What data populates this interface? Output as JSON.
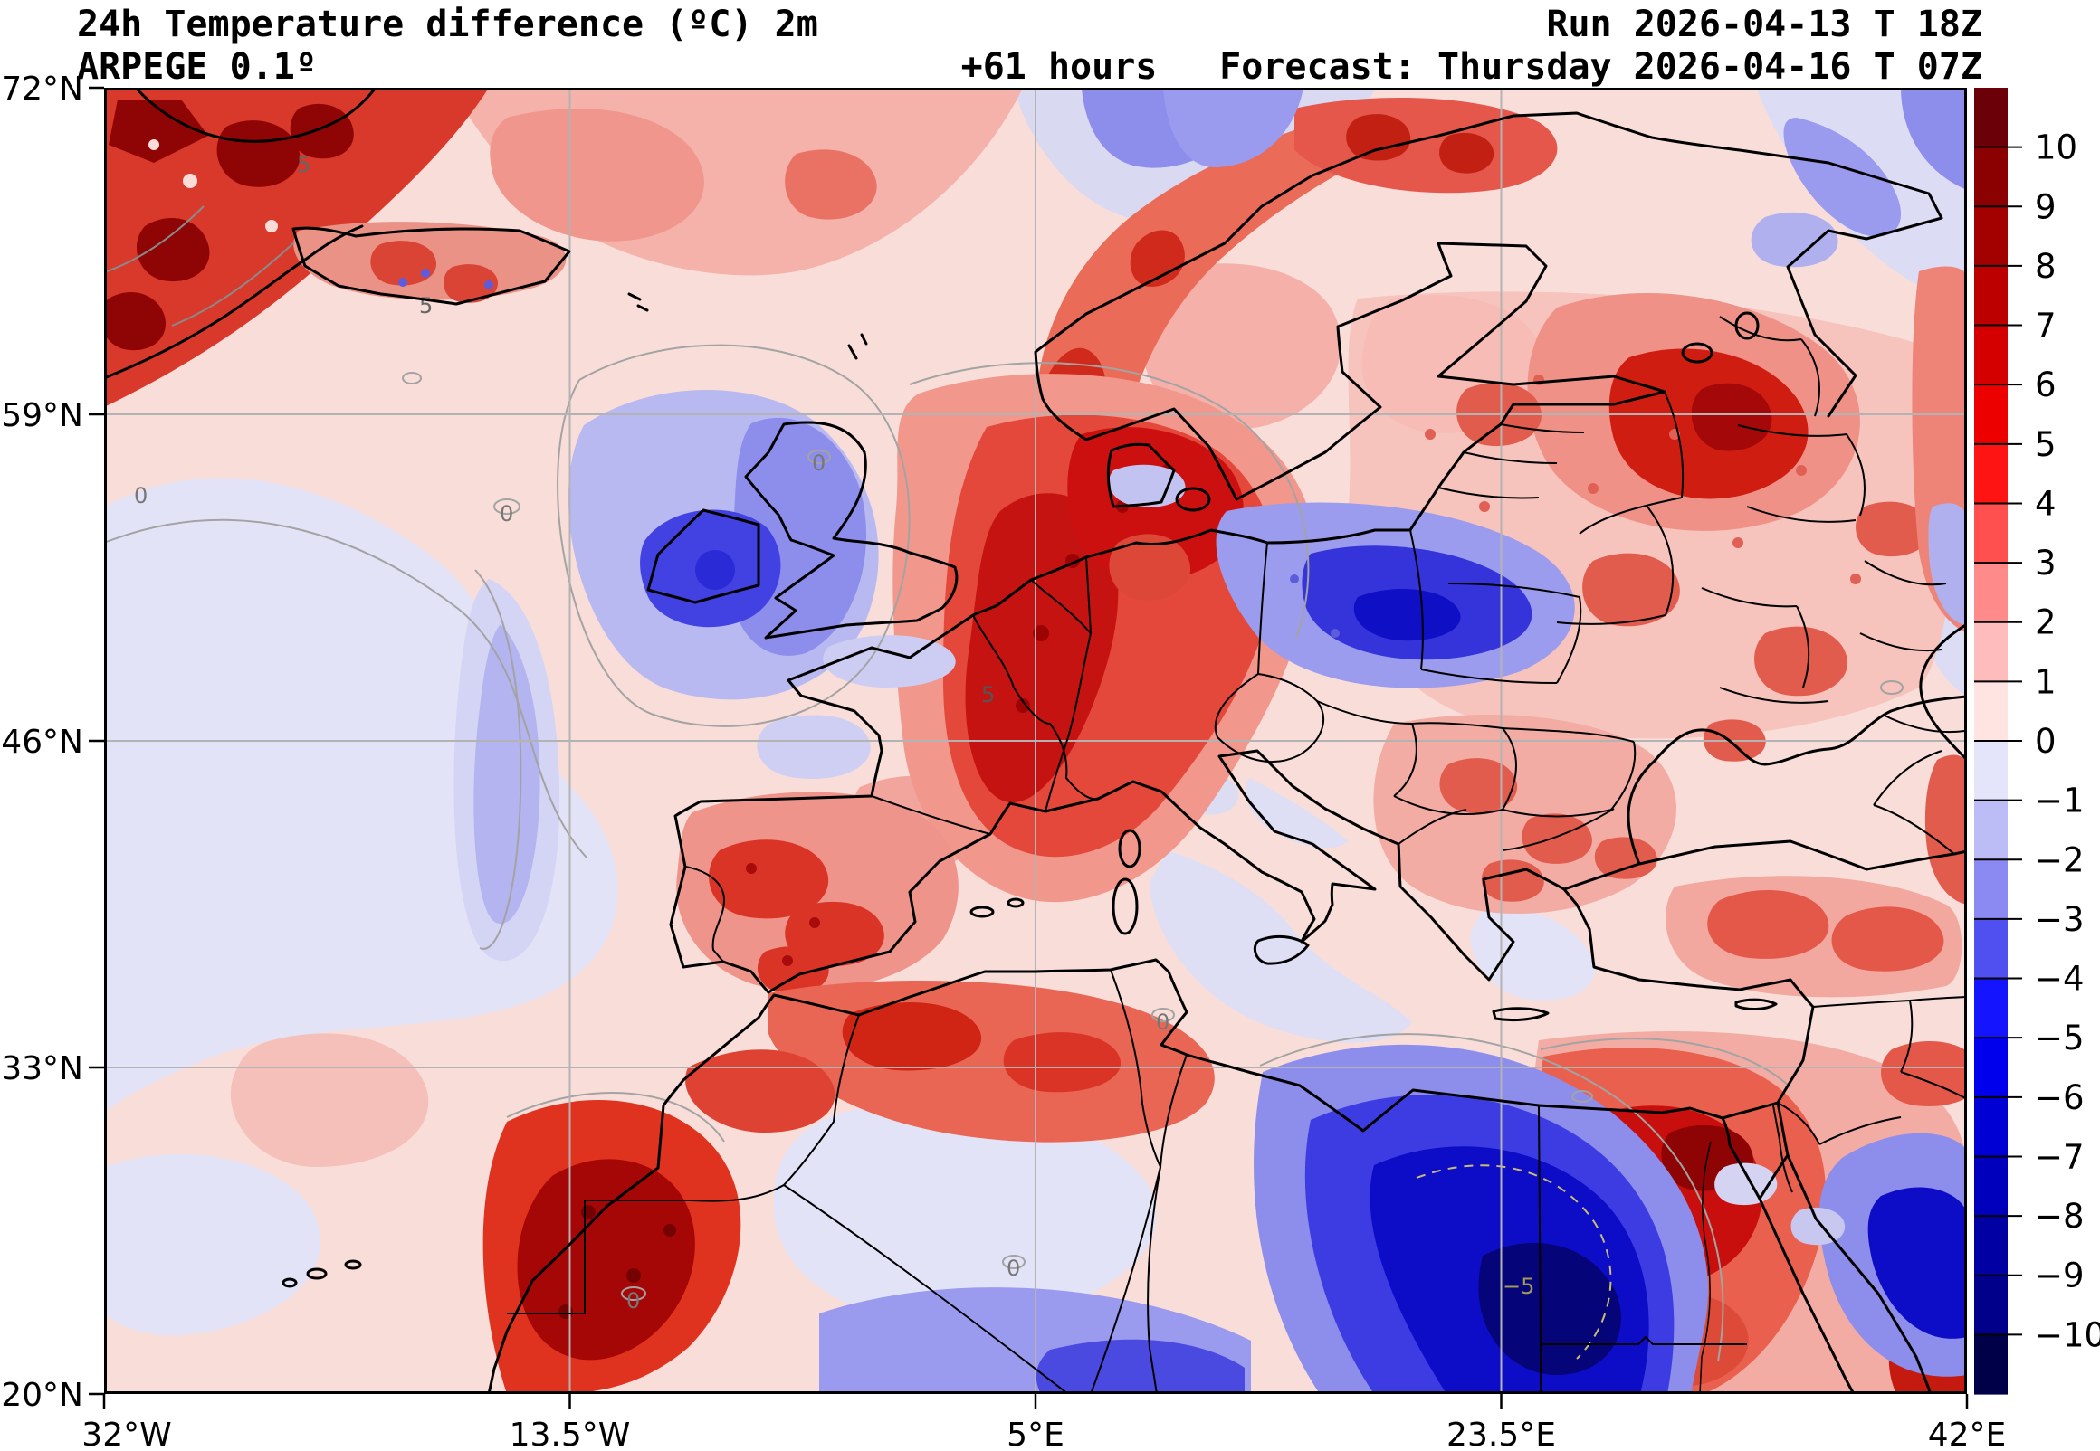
{
  "header": {
    "title": "24h Temperature difference (ºC) 2m",
    "model": "ARPEGE 0.1º",
    "lead": "+61 hours",
    "run": "Run 2026-04-13 T 18Z",
    "forecast": "Forecast: Thursday 2026-04-16 T 07Z"
  },
  "axes": {
    "lat": [
      "72°N",
      "59°N",
      "46°N",
      "33°N",
      "20°N"
    ],
    "lon": [
      "32°W",
      "13.5°W",
      "5°E",
      "23.5°E",
      "42°E"
    ]
  },
  "colorbar": {
    "ticks": [
      "10",
      "9",
      "8",
      "7",
      "6",
      "5",
      "4",
      "3",
      "2",
      "1",
      "0",
      "−1",
      "−2",
      "−3",
      "−4",
      "−5",
      "−6",
      "−7",
      "−8",
      "−9",
      "−10"
    ],
    "colors": [
      "#6b0008",
      "#8b0000",
      "#a30000",
      "#bc0000",
      "#d40000",
      "#ec0000",
      "#ff1414",
      "#ff5050",
      "#ff8a8a",
      "#ffbcbc",
      "#ffe4e1",
      "#e4e4fa",
      "#bcbcf6",
      "#8a8af2",
      "#5050f0",
      "#1414ff",
      "#0000ec",
      "#0000d4",
      "#0000bc",
      "#0000a3",
      "#00008b",
      "#000048"
    ]
  },
  "map": {
    "contour_labels": {
      "zero": "0",
      "five": "5",
      "minus_five": "−5"
    }
  },
  "chart_data": {
    "type": "heatmap",
    "title": "24h Temperature difference (ºC) 2m",
    "units": "°C",
    "model": "ARPEGE 0.1º",
    "lead_time_hours": 61,
    "run": "2026-04-13 18Z",
    "valid": "Thursday 2026-04-16 07Z",
    "lon_range": [
      "32°W",
      "42°E"
    ],
    "lat_range": [
      "20°N",
      "72°N"
    ],
    "lat_gridlines": [
      "72°N",
      "59°N",
      "46°N",
      "33°N",
      "20°N"
    ],
    "lon_gridlines": [
      "32°W",
      "13.5°W",
      "5°E",
      "23.5°E",
      "42°E"
    ],
    "colorbar_levels": [
      -10,
      -9,
      -8,
      -7,
      -6,
      -5,
      -4,
      -3,
      -2,
      -1,
      0,
      1,
      2,
      3,
      4,
      5,
      6,
      7,
      8,
      9,
      10
    ],
    "legend_position": "right",
    "notable_anomalies": [
      {
        "region": "SE Greenland (top-left corner)",
        "value": "+5 to >+10"
      },
      {
        "region": "Iceland",
        "value": "mixed, +2 to +5 with local negatives"
      },
      {
        "region": "Ireland and western Britain",
        "value": "-2 to -5"
      },
      {
        "region": "Norwegian coast",
        "value": "+2 to +5"
      },
      {
        "region": "NW Russia / Karelia",
        "value": "+3 to +6"
      },
      {
        "region": "Germany and central Europe",
        "value": "+3 to +6"
      },
      {
        "region": "southern Baltic coast",
        "value": "-3 to -6"
      },
      {
        "region": "Atlantic west of Portugal",
        "value": "-1 to -3"
      },
      {
        "region": "Iberia interior",
        "value": "+2 to +5"
      },
      {
        "region": "southern Morocco / Atlas",
        "value": "+5 to +9"
      },
      {
        "region": "central Libya / Algerian Sahara",
        "value": "-6 to below -10"
      },
      {
        "region": "northern Egypt / Nile delta",
        "value": "+4 to +8"
      },
      {
        "region": "NW Arabia (bottom-right)",
        "value": "-6 to -10"
      },
      {
        "region": "mid North Atlantic",
        "value": "-1 to +1"
      }
    ]
  }
}
